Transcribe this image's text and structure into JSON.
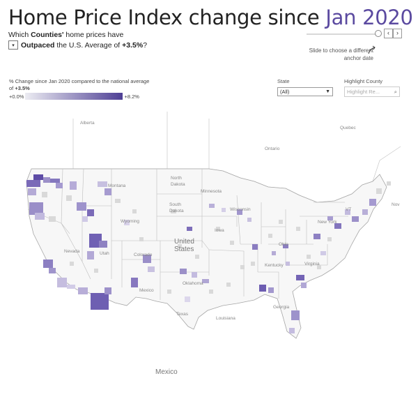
{
  "title": {
    "prefix": "Home Price Index change since ",
    "anchor_date": "Jan 2020"
  },
  "question": {
    "line1_pre": "Which ",
    "line1_bold": "Counties'",
    "line1_post": " home prices have",
    "dropdown_icon": "▾",
    "line2_bold": "Outpaced",
    "line2_mid": " the U.S. Average of ",
    "line2_value": "+3.5%",
    "line2_end": "?"
  },
  "slider": {
    "prev": "‹",
    "next": "›",
    "hint": "Slide to choose a different anchor date"
  },
  "legend": {
    "desc_pre": "% Change since Jan 2020 compared to the national average of ",
    "desc_value": "+3.5%",
    "min": "+0.0%",
    "max": "+8.2%",
    "color_low": "#ececf2",
    "color_high": "#4e3f95"
  },
  "filters": {
    "state_label": "State",
    "state_value": "(All)",
    "county_label": "Highlight County",
    "county_placeholder": "Highlight Re..."
  },
  "map_labels": {
    "alberta": "Alberta",
    "quebec": "Quebec",
    "ontario": "Ontario",
    "north_dakota_1": "North",
    "north_dakota_2": "Dakota",
    "south_dakota_1": "South",
    "south_dakota_2": "Dakota",
    "montana": "Montana",
    "wyoming": "Wyoming",
    "nevada": "Nevada",
    "utah": "Utah",
    "colorado": "Colorado",
    "minnesota": "Minnesota",
    "iowa": "Iowa",
    "wisconsin": "Wisconsin",
    "ohio": "Ohio",
    "virginia": "Virginia",
    "kentucky": "Kentucky",
    "georgia": "Georgia",
    "louisiana": "Louisiana",
    "texas": "Texas",
    "oklahoma": "Oklahoma",
    "mexico_state": "Mexico",
    "new_york": "New York",
    "vt": "VT",
    "nova": "Nov",
    "united_states_1": "United",
    "united_states_2": "States",
    "mexico": "Mexico"
  }
}
